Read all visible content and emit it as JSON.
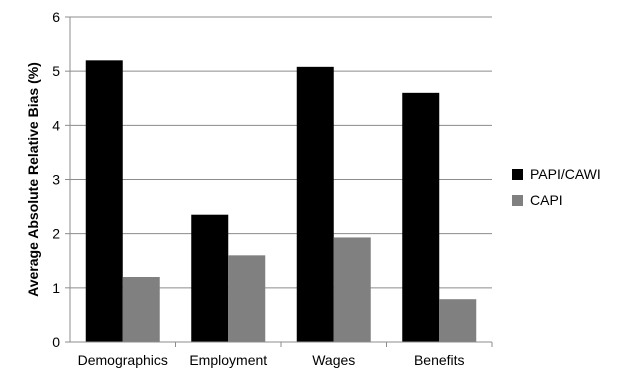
{
  "chart_data": {
    "type": "bar",
    "title": "",
    "xlabel": "",
    "ylabel": "Average Absolute Relative Bias (%)",
    "ylim": [
      0,
      6
    ],
    "yticks": [
      0,
      1,
      2,
      3,
      4,
      5,
      6
    ],
    "grid": "horizontal",
    "legend_position": "right",
    "categories": [
      "Demographics",
      "Employment",
      "Wages",
      "Benefits"
    ],
    "series": [
      {
        "name": "PAPI/CAWI",
        "color": "#000000",
        "values": [
          5.2,
          2.35,
          5.08,
          4.6
        ]
      },
      {
        "name": "CAPI",
        "color": "#808080",
        "values": [
          1.2,
          1.6,
          1.93,
          0.79
        ]
      }
    ]
  }
}
